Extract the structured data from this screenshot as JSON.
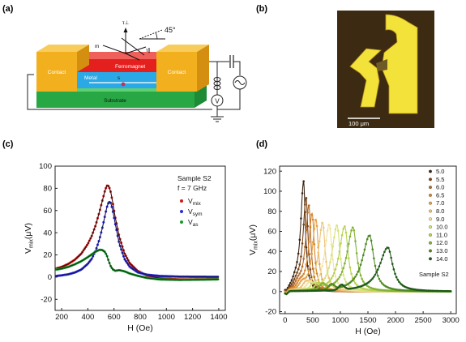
{
  "panels": {
    "a": "(a)",
    "b": "(b)",
    "c": "(c)",
    "d": "(d)"
  },
  "schematic": {
    "contact_left": "Contact",
    "contact_right": "Contact",
    "ferromagnet": "Ferromagnet",
    "metal": "Metal",
    "substrate": "Substrate",
    "angle": "45°",
    "voltmeter": "V",
    "symbol_m": "m",
    "symbol_hu": "τ⊥",
    "symbol_tau": "τ∥",
    "symbol_s": "s",
    "colors": {
      "contact": "#f2b01e",
      "contact_top": "#f7cc5a",
      "ferromagnet": "#e4201f",
      "metal": "#2aa9e6",
      "substrate": "#27a844"
    }
  },
  "micrograph": {
    "scale_bar": "100 μm",
    "colors": {
      "background": "#3c2a12",
      "gold": "#f3e23a"
    }
  },
  "chart_data": [
    {
      "panel": "(c)",
      "type": "line",
      "annotation_lines": [
        "Sample S2",
        "f = 7 GHz"
      ],
      "xlabel": "H (Oe)",
      "ylabel_main": "V",
      "ylabel_sub": "mix",
      "ylabel_unit": "(μV)",
      "xlim": [
        150,
        1450
      ],
      "ylim": [
        -30,
        100
      ],
      "xticks": [
        200,
        400,
        600,
        800,
        1000,
        1200,
        1400
      ],
      "yticks": [
        -20,
        0,
        20,
        40,
        60,
        80,
        100
      ],
      "series": [
        {
          "name": "V",
          "sub": "mix",
          "color": "#d01818",
          "fit_color": "#3a0a0a",
          "points": [
            [
              160,
              7.8
            ],
            [
              200,
              9.2
            ],
            [
              250,
              11.8
            ],
            [
              300,
              15.6
            ],
            [
              350,
              21.1
            ],
            [
              400,
              29.9
            ],
            [
              430,
              37.1
            ],
            [
              460,
              46.8
            ],
            [
              490,
              59.3
            ],
            [
              510,
              68.5
            ],
            [
              530,
              77.6
            ],
            [
              545,
              82.4
            ],
            [
              560,
              82.1
            ],
            [
              575,
              76.6
            ],
            [
              590,
              67.2
            ],
            [
              610,
              53.4
            ],
            [
              640,
              36.5
            ],
            [
              680,
              21.5
            ],
            [
              720,
              12.5
            ],
            [
              780,
              5.6
            ],
            [
              850,
              1.5
            ],
            [
              950,
              -1.1
            ],
            [
              1100,
              -2.1
            ],
            [
              1250,
              -2.0
            ],
            [
              1400,
              -1.8
            ]
          ]
        },
        {
          "name": "V",
          "sub": "sym",
          "color": "#2a2ae0",
          "fit_color": "#151560",
          "points": [
            [
              160,
              1.0
            ],
            [
              200,
              1.6
            ],
            [
              250,
              2.5
            ],
            [
              300,
              4.1
            ],
            [
              350,
              6.8
            ],
            [
              400,
              12.0
            ],
            [
              430,
              16.6
            ],
            [
              460,
              23.8
            ],
            [
              490,
              34.6
            ],
            [
              510,
              44.0
            ],
            [
              530,
              54.8
            ],
            [
              545,
              62.8
            ],
            [
              560,
              67.9
            ],
            [
              575,
              66.9
            ],
            [
              590,
              60.2
            ],
            [
              610,
              47.7
            ],
            [
              640,
              30.2
            ],
            [
              680,
              16.3
            ],
            [
              720,
              9.3
            ],
            [
              780,
              4.4
            ],
            [
              850,
              2.2
            ],
            [
              950,
              1.0
            ],
            [
              1100,
              0.4
            ],
            [
              1250,
              0.3
            ],
            [
              1400,
              0.2
            ]
          ]
        },
        {
          "name": "V",
          "sub": "as",
          "color": "#1a9a2a",
          "fit_color": "#0b3a12",
          "points": [
            [
              160,
              6.8
            ],
            [
              200,
              7.6
            ],
            [
              250,
              9.2
            ],
            [
              300,
              11.5
            ],
            [
              350,
              14.3
            ],
            [
              400,
              18.0
            ],
            [
              430,
              20.5
            ],
            [
              460,
              23.0
            ],
            [
              490,
              24.6
            ],
            [
              510,
              24.4
            ],
            [
              530,
              22.7
            ],
            [
              545,
              19.6
            ],
            [
              560,
              14.2
            ],
            [
              575,
              9.7
            ],
            [
              590,
              7.0
            ],
            [
              610,
              5.7
            ],
            [
              640,
              6.3
            ],
            [
              680,
              5.2
            ],
            [
              720,
              3.2
            ],
            [
              780,
              1.2
            ],
            [
              850,
              -0.7
            ],
            [
              950,
              -2.1
            ],
            [
              1100,
              -2.5
            ],
            [
              1250,
              -2.3
            ],
            [
              1400,
              -2.0
            ]
          ]
        }
      ]
    },
    {
      "panel": "(d)",
      "type": "line",
      "legend_note": "Sample S2",
      "xlabel": "H (Oe)",
      "ylabel_main": "V",
      "ylabel_sub": "mix",
      "ylabel_unit": "(μV)",
      "xlim": [
        -100,
        3100
      ],
      "ylim": [
        -22,
        125
      ],
      "xticks": [
        0,
        500,
        1000,
        1500,
        2000,
        2500,
        3000
      ],
      "yticks": [
        -20,
        0,
        20,
        40,
        60,
        80,
        100,
        120
      ],
      "series": [
        {
          "name": "5.0",
          "color": "#3b2414",
          "H0": 335,
          "peak": 110
        },
        {
          "name": "5.5",
          "color": "#7a4318",
          "H0": 380,
          "peak": 94
        },
        {
          "name": "6.0",
          "color": "#b26a26",
          "H0": 430,
          "peak": 86
        },
        {
          "name": "6.5",
          "color": "#d7842f",
          "H0": 490,
          "peak": 78
        },
        {
          "name": "7.0",
          "color": "#e5a246",
          "H0": 560,
          "peak": 72
        },
        {
          "name": "8.0",
          "color": "#ecc57a",
          "H0": 680,
          "peak": 69
        },
        {
          "name": "9.0",
          "color": "#f2e2a0",
          "H0": 800,
          "peak": 67
        },
        {
          "name": "10.0",
          "color": "#d6e27a",
          "H0": 940,
          "peak": 66
        },
        {
          "name": "11.0",
          "color": "#b9d250",
          "H0": 1080,
          "peak": 65
        },
        {
          "name": "12.0",
          "color": "#83b236",
          "H0": 1230,
          "peak": 64
        },
        {
          "name": "13.0",
          "color": "#4f8a22",
          "H0": 1530,
          "peak": 56
        },
        {
          "name": "14.0",
          "color": "#1f5a16",
          "H0": 1860,
          "peak": 44
        }
      ]
    }
  ]
}
